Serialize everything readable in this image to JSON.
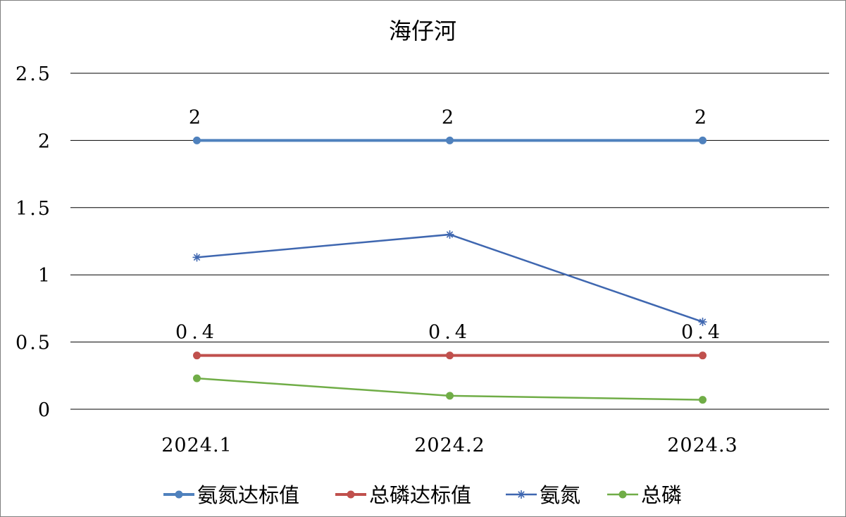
{
  "chart_data": {
    "type": "line",
    "title": "海仔河",
    "categories": [
      "2024.1",
      "2024.2",
      "2024.3"
    ],
    "ylim": [
      0,
      2.5
    ],
    "yticks": [
      "0",
      "0.5",
      "1",
      "1.5",
      "2",
      "2.5"
    ],
    "grid": true,
    "legend": "bottom",
    "series": [
      {
        "name": "氨氮达标值",
        "values": [
          2,
          2,
          2
        ],
        "color": "#4f81bd",
        "marker": "circle",
        "data_labels": [
          "2",
          "2",
          "2"
        ]
      },
      {
        "name": "总磷达标值",
        "values": [
          0.4,
          0.4,
          0.4
        ],
        "color": "#c0504d",
        "marker": "circle",
        "data_labels": [
          "0.4",
          "0.4",
          "0.4"
        ]
      },
      {
        "name": "氨氮",
        "values": [
          1.13,
          1.3,
          0.65
        ],
        "color": "#3f67b0",
        "marker": "star"
      },
      {
        "name": "总磷",
        "values": [
          0.23,
          0.1,
          0.07
        ],
        "color": "#70ad47",
        "marker": "circle"
      }
    ]
  }
}
